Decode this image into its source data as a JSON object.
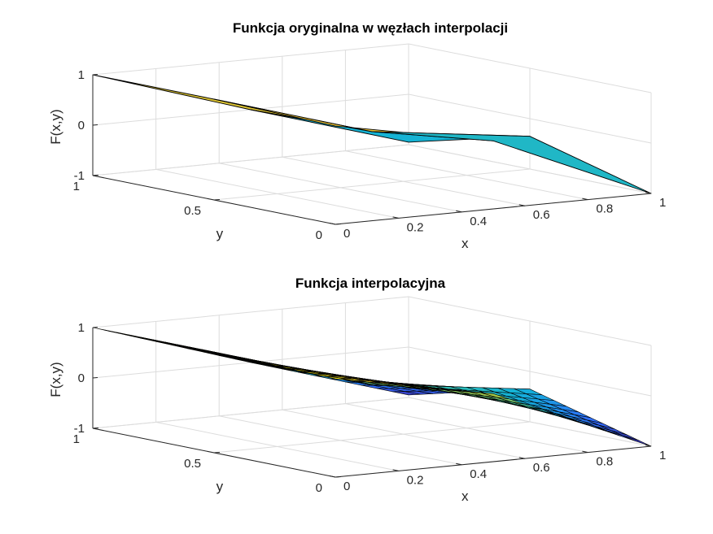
{
  "figure": {
    "background": "#ffffff",
    "colormap": [
      "#3e26a8",
      "#2f6ffd",
      "#12b2d8",
      "#44c59a",
      "#b9c530",
      "#fbc338",
      "#f9fb14"
    ]
  },
  "chart_data": [
    {
      "type": "surface",
      "title": "Funkcja oryginalna w węzłach interpolacji",
      "xlabel": "x",
      "ylabel": "y",
      "zlabel": "F(x,y)",
      "xlim": [
        0,
        1
      ],
      "ylim": [
        0,
        1
      ],
      "zlim": [
        -1,
        1
      ],
      "xticks": [
        "0",
        "0.2",
        "0.4",
        "0.6",
        "0.8",
        "1"
      ],
      "yticks": [
        "0",
        "0.5",
        "1"
      ],
      "zticks": [
        "-1",
        "0",
        "1"
      ],
      "grid": true,
      "edge_color": "#000000",
      "x": [
        0,
        0.5,
        1
      ],
      "y": [
        0,
        0.5,
        1
      ],
      "z": [
        [
          0.95,
          0.35,
          -1.0
        ],
        [
          1.0,
          0.05,
          -0.35
        ],
        [
          1.0,
          0.0,
          -0.95
        ]
      ]
    },
    {
      "type": "surface",
      "title": "Funkcja interpolacyjna",
      "xlabel": "x",
      "ylabel": "y",
      "zlabel": "F(x,y)",
      "xlim": [
        0,
        1
      ],
      "ylim": [
        0,
        1
      ],
      "zlim": [
        -1,
        1
      ],
      "xticks": [
        "0",
        "0.2",
        "0.4",
        "0.6",
        "0.8",
        "1"
      ],
      "yticks": [
        "0",
        "0.5",
        "1"
      ],
      "zticks": [
        "-1",
        "0",
        "1"
      ],
      "grid": true,
      "edge_color": "#000000",
      "interpolation": "bilinear",
      "mesh": 20,
      "x": [
        0,
        0.5,
        1
      ],
      "y": [
        0,
        0.5,
        1
      ],
      "z": [
        [
          0.95,
          0.35,
          -1.0
        ],
        [
          1.0,
          0.05,
          -0.35
        ],
        [
          1.0,
          0.0,
          -0.95
        ]
      ]
    }
  ]
}
